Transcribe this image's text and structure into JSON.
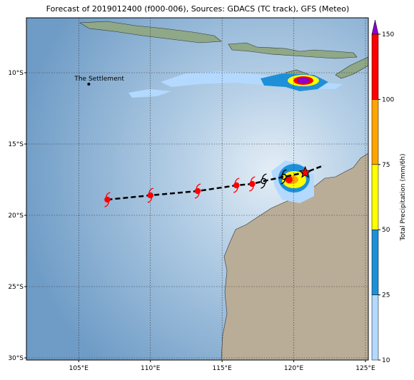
{
  "title": "Forecast of 2019012400 (f000-006), Sources: GDACS (TC track), GFS (Meteo)",
  "map": {
    "lon_range": [
      101.35,
      125.2
    ],
    "lat_range": [
      -30.15,
      -6.15
    ],
    "lon_ticks": [
      {
        "value": 105,
        "label": "105°E"
      },
      {
        "value": 110,
        "label": "110°E"
      },
      {
        "value": 115,
        "label": "115°E"
      },
      {
        "value": 120,
        "label": "120°E"
      },
      {
        "value": 125,
        "label": "125°E"
      }
    ],
    "lat_ticks": [
      {
        "value": -10,
        "label": "10°S"
      },
      {
        "value": -15,
        "label": "15°S"
      },
      {
        "value": -20,
        "label": "20°S"
      },
      {
        "value": -25,
        "label": "25°S"
      },
      {
        "value": -30,
        "label": "30°S"
      }
    ],
    "places": [
      {
        "name": "The Settlement",
        "lon": 105.7,
        "lat": -10.4
      }
    ],
    "track": {
      "lon": [
        107.0,
        110.0,
        113.3,
        116.0,
        117.1,
        117.9,
        119.3,
        120.8,
        122.1
      ],
      "lat": [
        -18.9,
        -18.6,
        -18.3,
        -17.9,
        -17.8,
        -17.6,
        -17.3,
        -17.0,
        -16.5
      ],
      "kind": [
        "forecast",
        "forecast",
        "forecast",
        "forecast",
        "forecast",
        "past",
        "past",
        "current",
        null
      ]
    }
  },
  "colorbar": {
    "label": "Total Precipitation (mm/6h)",
    "levels": [
      10,
      25,
      50,
      75,
      100,
      150
    ],
    "colors": [
      "#b3d9ff",
      "#1e90d8",
      "#ffff00",
      "#ffa500",
      "#ff0000"
    ],
    "extend_color": "#8a00c8"
  }
}
